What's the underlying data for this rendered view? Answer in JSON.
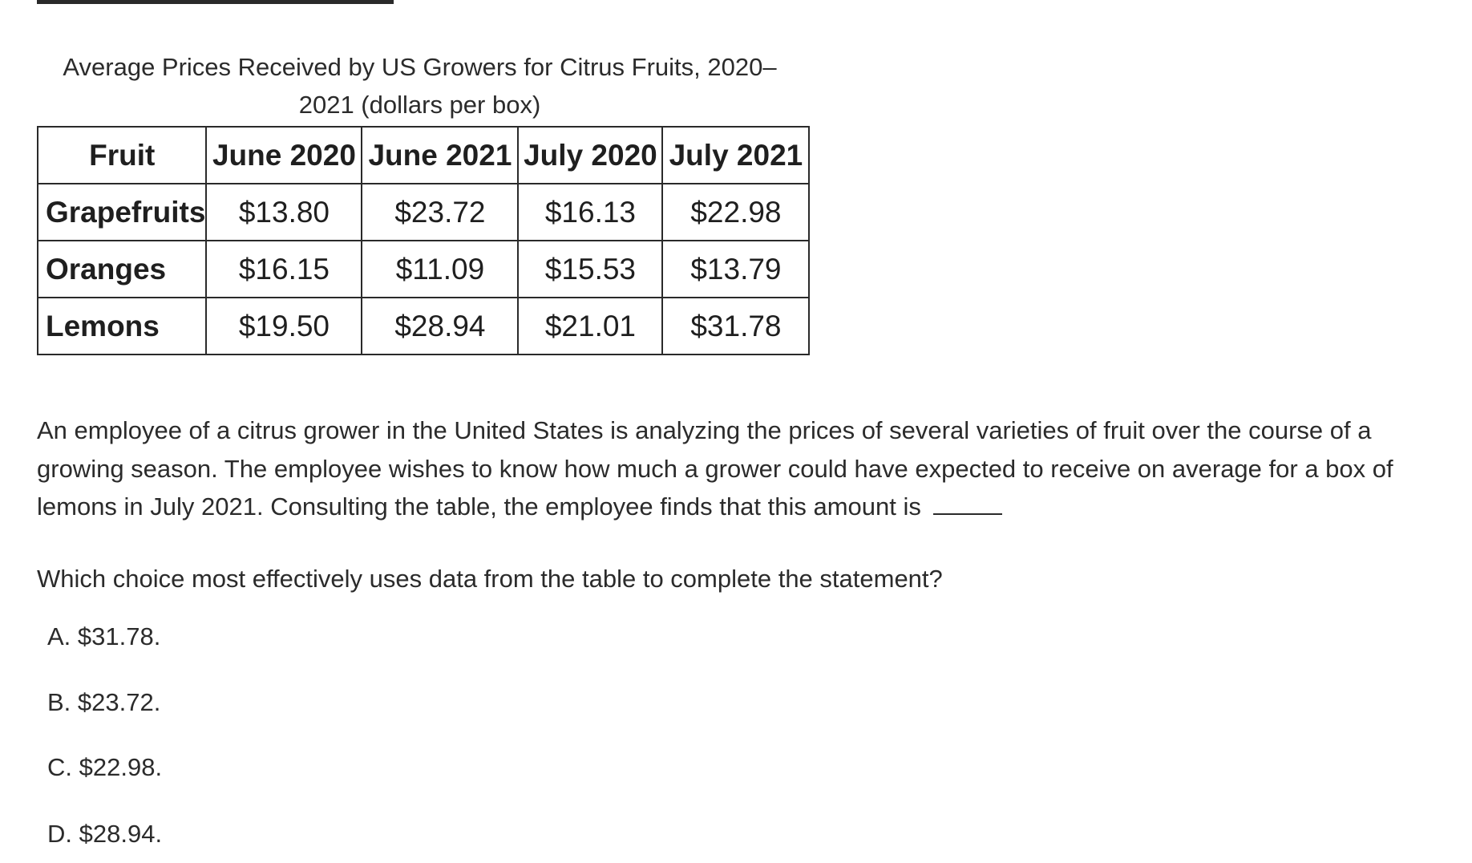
{
  "table": {
    "caption_line1": "Average Prices Received by US Growers for Citrus Fruits, 2020–",
    "caption_line2": "2021 (dollars per box)",
    "headers": [
      "Fruit",
      "June 2020",
      "June 2021",
      "July 2020",
      "July 2021"
    ],
    "rows": [
      {
        "fruit": "Grapefruits",
        "values": [
          "$13.80",
          "$23.72",
          "$16.13",
          "$22.98"
        ]
      },
      {
        "fruit": "Oranges",
        "values": [
          "$16.15",
          "$11.09",
          "$15.53",
          "$13.79"
        ]
      },
      {
        "fruit": "Lemons",
        "values": [
          "$19.50",
          "$28.94",
          "$21.01",
          "$31.78"
        ]
      }
    ]
  },
  "passage": "An employee of a citrus grower in the United States is analyzing the prices of several varieties of fruit over the course of a growing season. The employee wishes to know how much a grower could have expected to receive on average for a box of lemons in July 2021. Consulting the table, the employee finds that this amount is",
  "question": "Which choice most effectively uses data from the table to complete the statement?",
  "choices": [
    {
      "letter": "A.",
      "text": "$31.78."
    },
    {
      "letter": "B.",
      "text": "$23.72."
    },
    {
      "letter": "C.",
      "text": "$22.98."
    },
    {
      "letter": "D.",
      "text": "$28.94."
    }
  ]
}
